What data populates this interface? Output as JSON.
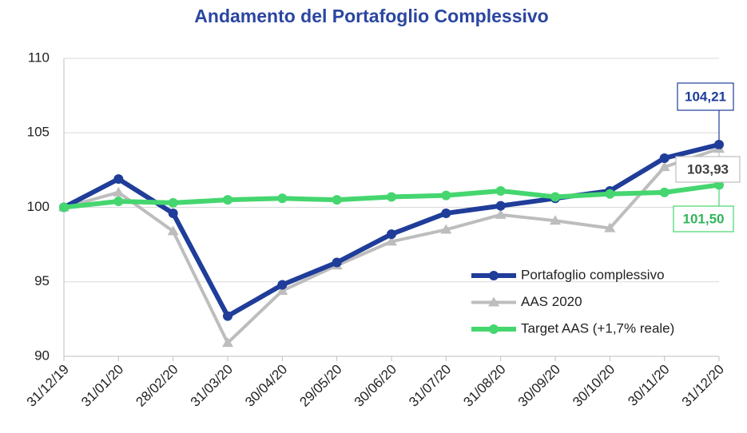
{
  "chart_data": {
    "type": "line",
    "title": "Andamento del Portafoglio Complessivo",
    "categories": [
      "31/12/19",
      "31/01/20",
      "28/02/20",
      "31/03/20",
      "30/04/20",
      "29/05/20",
      "30/06/20",
      "31/07/20",
      "31/08/20",
      "30/09/20",
      "30/10/20",
      "30/11/20",
      "31/12/20"
    ],
    "series": [
      {
        "name": "Portafoglio complessivo",
        "color": "#1f3d99",
        "marker": "circle",
        "values": [
          100,
          101.9,
          99.6,
          92.7,
          94.8,
          96.3,
          98.2,
          99.6,
          100.1,
          100.6,
          101.1,
          103.3,
          104.21
        ],
        "value_labels": [
          null,
          null,
          null,
          null,
          null,
          null,
          null,
          null,
          null,
          null,
          null,
          null,
          "104,21"
        ]
      },
      {
        "name": "AAS 2020",
        "color": "#bdbdbd",
        "marker": "triangle",
        "values": [
          100,
          101.0,
          98.4,
          90.9,
          94.4,
          96.1,
          97.7,
          98.5,
          99.5,
          99.1,
          98.6,
          102.7,
          103.93
        ],
        "value_labels": [
          null,
          null,
          null,
          null,
          null,
          null,
          null,
          null,
          null,
          null,
          null,
          null,
          "103,93"
        ]
      },
      {
        "name": "Target AAS (+1,7% reale)",
        "color": "#45d66f",
        "marker": "circle",
        "values": [
          100,
          100.4,
          100.3,
          100.5,
          100.6,
          100.5,
          100.7,
          100.8,
          101.1,
          100.7,
          100.9,
          101.0,
          101.5
        ],
        "value_labels": [
          null,
          null,
          null,
          null,
          null,
          null,
          null,
          null,
          null,
          null,
          null,
          null,
          "101,50"
        ]
      }
    ],
    "ylim": [
      90,
      110
    ],
    "yticks": [
      90,
      95,
      100,
      105,
      110
    ],
    "grid": true,
    "legend": "lower right"
  }
}
